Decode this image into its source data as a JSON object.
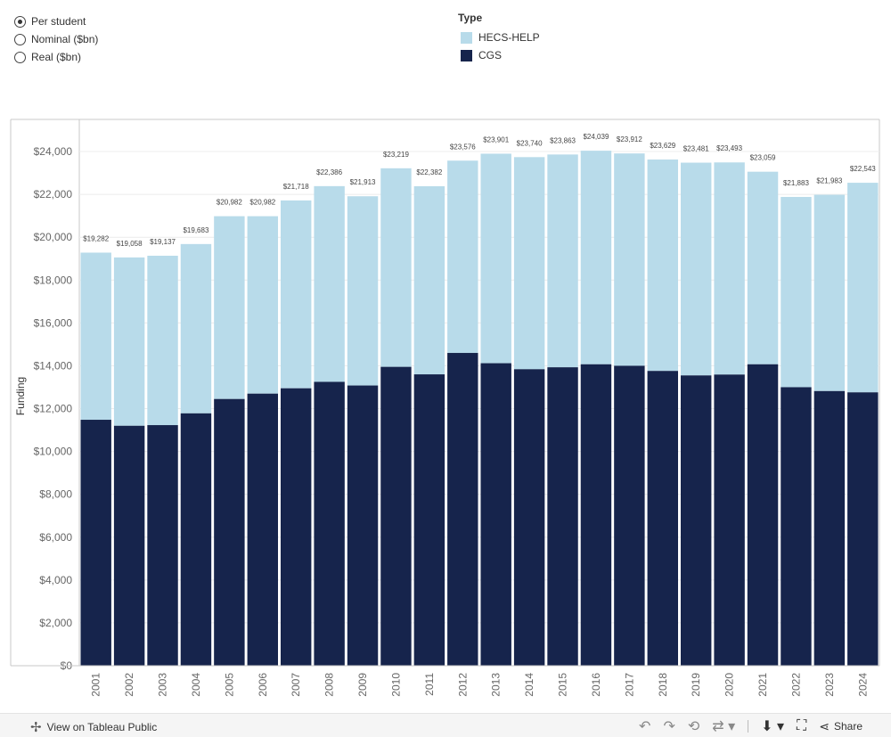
{
  "radio_options": [
    {
      "label": "Per student",
      "selected": true
    },
    {
      "label": "Nominal ($bn)",
      "selected": false
    },
    {
      "label": "Real ($bn)",
      "selected": false
    }
  ],
  "legend": {
    "title": "Type",
    "items": [
      {
        "label": "HECS-HELP",
        "color": "#b8dbea"
      },
      {
        "label": "CGS",
        "color": "#16244c"
      }
    ]
  },
  "chart_data": {
    "type": "bar",
    "stacked": true,
    "ylabel": "Funding",
    "ylim": [
      0,
      25500
    ],
    "yticks": [
      0,
      2000,
      4000,
      6000,
      8000,
      10000,
      12000,
      14000,
      16000,
      18000,
      20000,
      22000,
      24000
    ],
    "ytick_labels": [
      "$0",
      "$2,000",
      "$4,000",
      "$6,000",
      "$8,000",
      "$10,000",
      "$12,000",
      "$14,000",
      "$16,000",
      "$18,000",
      "$20,000",
      "$22,000",
      "$24,000"
    ],
    "categories": [
      "2001",
      "2002",
      "2003",
      "2004",
      "2005",
      "2006",
      "2007",
      "2008",
      "2009",
      "2010",
      "2011",
      "2012",
      "2013",
      "2014",
      "2015",
      "2016",
      "2017",
      "2018",
      "2019",
      "2020",
      "2021",
      "2022",
      "2023",
      "2024"
    ],
    "series": [
      {
        "name": "CGS",
        "color": "#16244c",
        "values": [
          11480,
          11200,
          11230,
          11780,
          12450,
          12700,
          12950,
          13250,
          13080,
          13950,
          13600,
          14600,
          14120,
          13840,
          13930,
          14070,
          14000,
          13760,
          13550,
          13590,
          14070,
          13000,
          12820,
          12760
        ]
      },
      {
        "name": "HECS-HELP",
        "color": "#b8dbea",
        "values": [
          7802,
          7858,
          7907,
          7903,
          8532,
          8282,
          8768,
          9136,
          8833,
          9269,
          8782,
          8976,
          9781,
          9900,
          9933,
          9969,
          9912,
          9869,
          9931,
          9903,
          8989,
          8883,
          9163,
          9783
        ]
      }
    ],
    "totals": [
      19282,
      19058,
      19137,
      19683,
      20982,
      20982,
      21718,
      22386,
      21913,
      23219,
      22382,
      23576,
      23901,
      23740,
      23863,
      24039,
      23912,
      23629,
      23481,
      23493,
      23059,
      21883,
      21983,
      22543
    ],
    "total_labels": [
      "$19,282",
      "$19,058",
      "$19,137",
      "$19,683",
      "$20,982",
      "$20,982",
      "$21,718",
      "$22,386",
      "$21,913",
      "$23,219",
      "$22,382",
      "$23,576",
      "$23,901",
      "$23,740",
      "$23,863",
      "$24,039",
      "$23,912",
      "$23,629",
      "$23,481",
      "$23,493",
      "$23,059",
      "$21,883",
      "$21,983",
      "$22,543"
    ],
    "grid": true,
    "legend_position": "top-center"
  },
  "footer": {
    "view_link": "View on Tableau Public",
    "share_label": "Share"
  }
}
